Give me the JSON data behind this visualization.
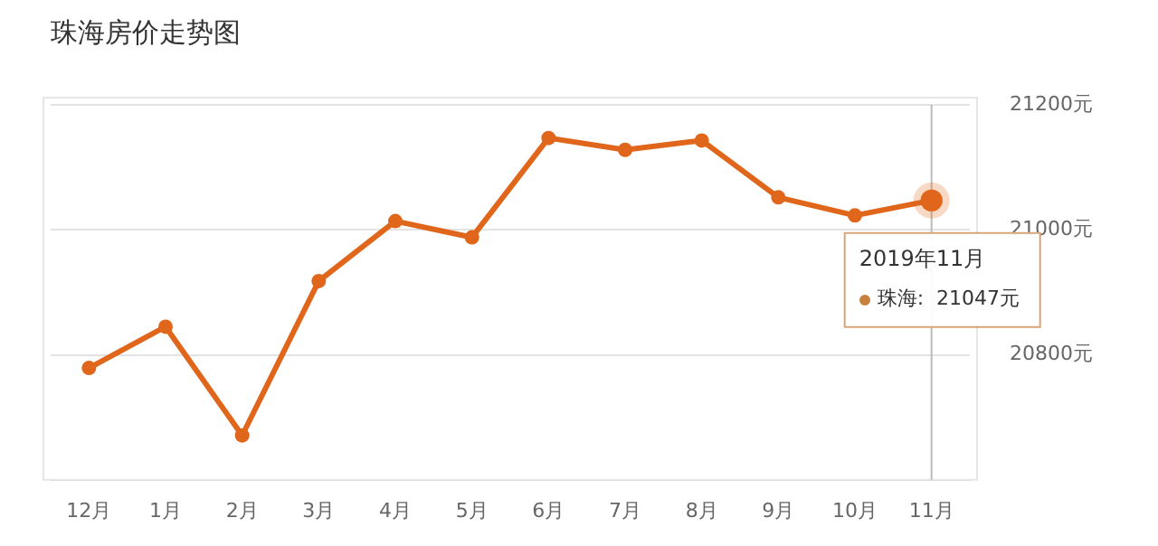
{
  "chart_data": {
    "type": "line",
    "title": "珠海房价走势图",
    "categories": [
      "12月",
      "1月",
      "2月",
      "3月",
      "4月",
      "5月",
      "6月",
      "7月",
      "8月",
      "9月",
      "10月",
      "11月"
    ],
    "series": [
      {
        "color": "#e0661c",
        "values": [
          20779,
          20845,
          20671,
          20918,
          21014,
          20988,
          21147,
          21128,
          21143,
          21052,
          21023,
          21047
        ]
      }
    ],
    "ylim": [
      20600,
      21200
    ],
    "yticks": [
      {
        "value": 20600,
        "label": null
      },
      {
        "value": 20800,
        "label": "20800元"
      },
      {
        "value": 21000,
        "label": "21000元"
      },
      {
        "value": 21200,
        "label": "21200元"
      }
    ],
    "grid": "y",
    "marker": "circle",
    "line_style": "solid",
    "legend": false,
    "annotations": [
      {
        "text": "2019年11月",
        "x": "11月",
        "y": 21047
      },
      "珠海:  21047元"
    ],
    "ref_lines": [
      {
        "axis": "x",
        "value": "11月",
        "color": "#bbbbbb"
      }
    ]
  }
}
